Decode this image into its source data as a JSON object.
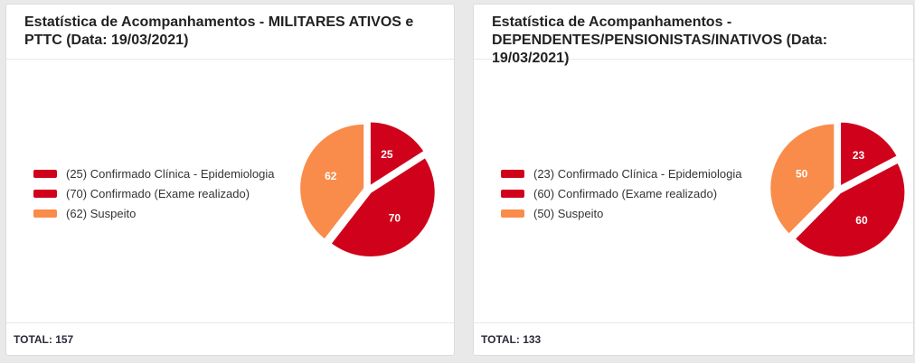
{
  "colors": {
    "confirmed_clinical": "#d0021b",
    "confirmed_exam": "#d0021b",
    "suspect": "#f98c4a"
  },
  "chart_data": [
    {
      "type": "pie",
      "title": "Estatística de Acompanhamentos - MILITARES ATIVOS e PTTC (Data: 19/03/2021)",
      "legend_position": "left",
      "slices": [
        {
          "label": "(25) Confirmado Clínica - Epidemiologia",
          "value": 25,
          "color": "#d0021b"
        },
        {
          "label": "(70) Confirmado (Exame realizado)",
          "value": 70,
          "color": "#d0021b"
        },
        {
          "label": "(62) Suspeito",
          "value": 62,
          "color": "#f98c4a"
        }
      ],
      "total": "TOTAL: 157"
    },
    {
      "type": "pie",
      "title": "Estatística de Acompanhamentos - DEPENDENTES/PENSIONISTAS/INATIVOS (Data: 19/03/2021)",
      "legend_position": "left",
      "slices": [
        {
          "label": "(23) Confirmado Clínica - Epidemiologia",
          "value": 23,
          "color": "#d0021b"
        },
        {
          "label": "(60) Confirmado (Exame realizado)",
          "value": 60,
          "color": "#d0021b"
        },
        {
          "label": "(50) Suspeito",
          "value": 50,
          "color": "#f98c4a"
        }
      ],
      "total": "TOTAL: 133"
    }
  ]
}
